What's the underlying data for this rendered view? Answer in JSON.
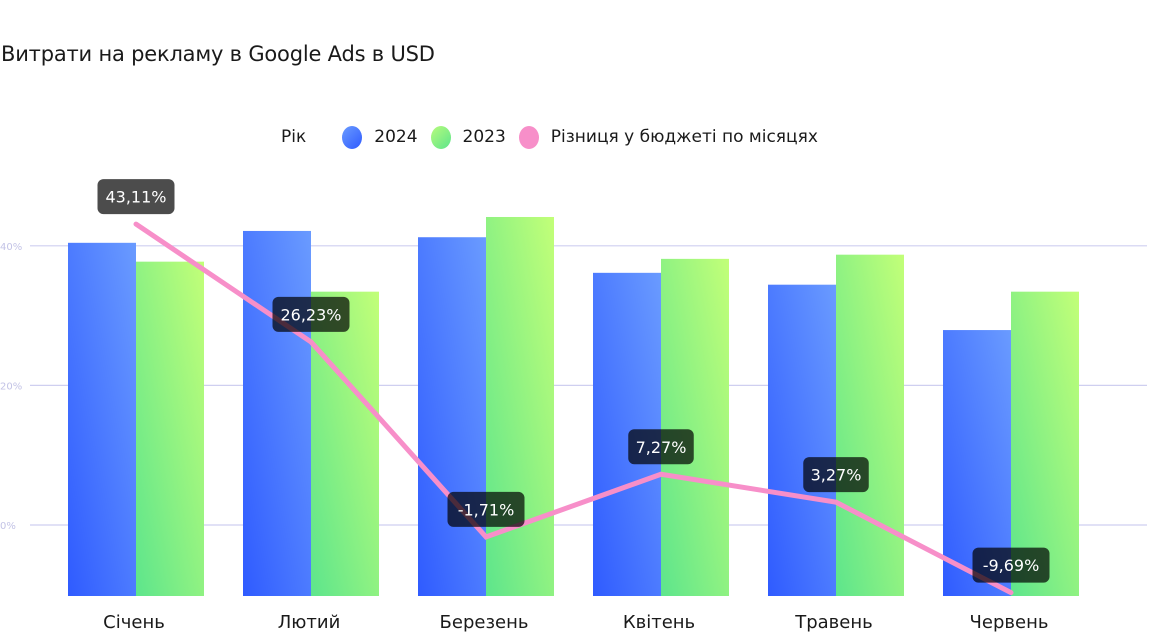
{
  "chart_data": {
    "type": "bar",
    "title": "Витрати на рекламу в Google Ads в USD",
    "legend": {
      "title": "Рік",
      "placement": "top-center",
      "entries": [
        "2024",
        "2023",
        "Різниця у бюджеті по місяцях"
      ]
    },
    "categories": [
      "Січень",
      "Лютий",
      "Березень",
      "Квітень",
      "Травень",
      "Червень"
    ],
    "series": [
      {
        "name": "2024",
        "kind": "bar",
        "axis": "secondary-hidden",
        "values": [
          50.6,
          52.3,
          51.4,
          46.3,
          44.6,
          38.1
        ],
        "color": "#4a78ff"
      },
      {
        "name": "2023",
        "kind": "bar",
        "axis": "secondary-hidden",
        "values": [
          47.9,
          43.6,
          54.3,
          48.3,
          48.9,
          43.6
        ],
        "color": "#8ef07e"
      },
      {
        "name": "Різниця у бюджеті по місяцях",
        "kind": "line",
        "axis": "primary",
        "values": [
          43.11,
          26.23,
          -1.71,
          7.27,
          3.27,
          -9.69
        ],
        "color": "#f78fc9"
      }
    ],
    "data_labels": [
      "43,11%",
      "26,23%",
      "-1,71%",
      "7,27%",
      "3,27%",
      "-9,69%"
    ],
    "y_axis": {
      "ticks": [
        0,
        20,
        40
      ],
      "tick_labels": [
        "0%",
        "20%",
        "40%"
      ],
      "range": [
        -10.2,
        53
      ],
      "grid": true
    },
    "bar_axis": {
      "range": [
        0,
        60
      ],
      "visible": false
    },
    "xlabel": "",
    "ylabel": ""
  },
  "colors": {
    "bar_2024_start": "#2f5bff",
    "bar_2024_end": "#6a9bff",
    "bar_2023_start": "#5de58c",
    "bar_2023_end": "#c2ff78",
    "line": "#f78fc9",
    "grid": "#cfcff0",
    "label_bg": "#000000"
  }
}
